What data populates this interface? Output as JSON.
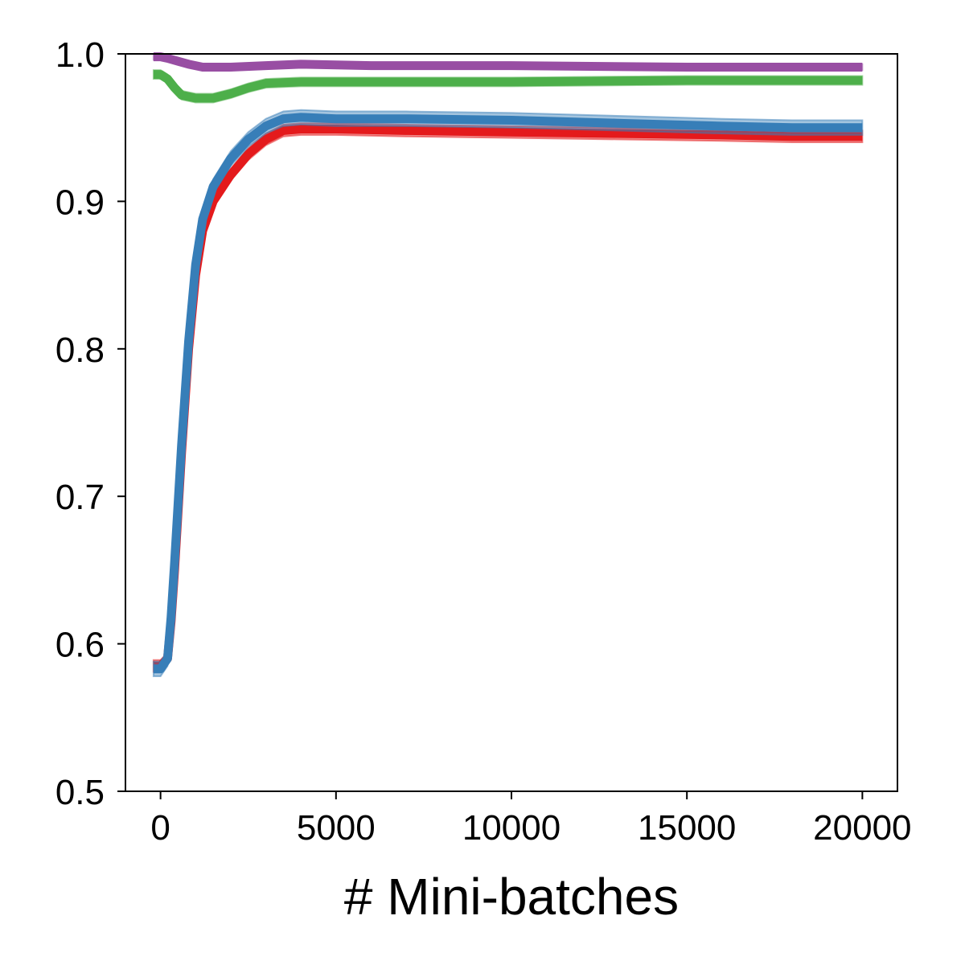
{
  "chart_data": {
    "type": "line",
    "title": "",
    "xlabel": "# Mini-batches",
    "ylabel": "",
    "xlim": [
      -1000,
      21000
    ],
    "ylim": [
      0.5,
      1.0
    ],
    "xticks": [
      0,
      5000,
      10000,
      15000,
      20000
    ],
    "xtick_labels": [
      "0",
      "5000",
      "10000",
      "15000",
      "20000"
    ],
    "yticks": [
      0.5,
      0.6,
      0.7,
      0.8,
      0.9,
      1.0
    ],
    "ytick_labels": [
      "0.5",
      "0.6",
      "0.7",
      "0.8",
      "0.9",
      "1.0"
    ],
    "grid": false,
    "legend": "none",
    "series": [
      {
        "color": "#984ea3",
        "band": 0.002,
        "x": [
          -200,
          0,
          200,
          500,
          800,
          1200,
          2000,
          3000,
          4000,
          6000,
          10000,
          15000,
          20000
        ],
        "y": [
          0.998,
          0.998,
          0.997,
          0.995,
          0.993,
          0.991,
          0.991,
          0.992,
          0.993,
          0.992,
          0.992,
          0.991,
          0.991
        ]
      },
      {
        "color": "#4daf4a",
        "band": 0.003,
        "x": [
          -200,
          0,
          200,
          400,
          600,
          1000,
          1500,
          2000,
          2500,
          3000,
          4000,
          6000,
          10000,
          15000,
          20000
        ],
        "y": [
          0.986,
          0.986,
          0.983,
          0.977,
          0.972,
          0.97,
          0.97,
          0.973,
          0.977,
          0.98,
          0.981,
          0.981,
          0.981,
          0.982,
          0.982
        ]
      },
      {
        "color": "#e41a1c",
        "band": 0.004,
        "x": [
          -200,
          0,
          200,
          300,
          400,
          500,
          600,
          800,
          1000,
          1200,
          1500,
          2000,
          2500,
          3000,
          3500,
          4000,
          5000,
          7000,
          10000,
          13000,
          16000,
          18000,
          20000
        ],
        "y": [
          0.585,
          0.585,
          0.59,
          0.615,
          0.65,
          0.69,
          0.73,
          0.8,
          0.85,
          0.88,
          0.9,
          0.918,
          0.932,
          0.942,
          0.948,
          0.949,
          0.949,
          0.948,
          0.947,
          0.946,
          0.945,
          0.944,
          0.944
        ]
      },
      {
        "color": "#377eb8",
        "band": 0.005,
        "x": [
          -200,
          0,
          200,
          300,
          400,
          500,
          600,
          800,
          1000,
          1200,
          1500,
          2000,
          2500,
          3000,
          3500,
          4000,
          5000,
          7000,
          10000,
          13000,
          16000,
          18000,
          20000
        ],
        "y": [
          0.583,
          0.583,
          0.59,
          0.618,
          0.655,
          0.695,
          0.735,
          0.805,
          0.857,
          0.888,
          0.91,
          0.929,
          0.942,
          0.951,
          0.956,
          0.957,
          0.956,
          0.956,
          0.955,
          0.953,
          0.951,
          0.95,
          0.95
        ]
      }
    ]
  }
}
